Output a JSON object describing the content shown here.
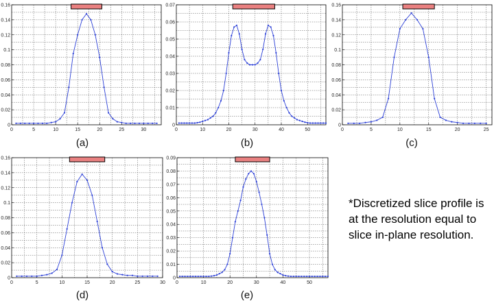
{
  "note": "*Discretized slice profile is at the resolution equal to slice in-plane resolution.",
  "colors": {
    "line": "#2b3fd6",
    "bar_fill": "#e98080",
    "bar_stroke": "#000000",
    "grid": "#555555"
  },
  "chart_data": [
    {
      "id": "a",
      "type": "line",
      "label": "(a)",
      "xlim": [
        0,
        34
      ],
      "ylim": [
        0,
        0.16
      ],
      "xticks": [
        0,
        5,
        10,
        15,
        20,
        25,
        30
      ],
      "yticks": [
        0,
        0.02,
        0.04,
        0.06,
        0.08,
        0.1,
        0.12,
        0.14,
        0.16
      ],
      "ytick_labels": [
        "0",
        "0.02",
        "0.04",
        "0.06",
        "0.08",
        "0.1",
        "0.12",
        "0.14",
        "0.16"
      ],
      "bar": [
        13.5,
        20.5
      ],
      "grid": true,
      "x": [
        1,
        2,
        3,
        4,
        5,
        6,
        7,
        8,
        9,
        10,
        11,
        12,
        13,
        14,
        15,
        16,
        17,
        18,
        19,
        20,
        21,
        22,
        23,
        24,
        25,
        26,
        27,
        28,
        29,
        30,
        31,
        32,
        33
      ],
      "y": [
        0.002,
        0.002,
        0.002,
        0.002,
        0.002,
        0.002,
        0.002,
        0.002,
        0.003,
        0.004,
        0.008,
        0.016,
        0.05,
        0.095,
        0.12,
        0.14,
        0.148,
        0.14,
        0.12,
        0.09,
        0.05,
        0.016,
        0.008,
        0.004,
        0.003,
        0.002,
        0.002,
        0.002,
        0.002,
        0.002,
        0.002,
        0.002,
        0.002
      ]
    },
    {
      "id": "b",
      "type": "line",
      "label": "(b)",
      "xlim": [
        0,
        57
      ],
      "ylim": [
        0,
        0.07
      ],
      "xticks": [
        0,
        10,
        20,
        30,
        40,
        50
      ],
      "yticks": [
        0,
        0.01,
        0.02,
        0.03,
        0.04,
        0.05,
        0.06,
        0.07
      ],
      "ytick_labels": [
        "0",
        "0.01",
        "0.02",
        "0.03",
        "0.04",
        "0.05",
        "0.06",
        "0.07"
      ],
      "bar": [
        21.5,
        37.5
      ],
      "grid": true,
      "x": [
        1,
        2,
        3,
        4,
        5,
        6,
        7,
        8,
        9,
        10,
        11,
        12,
        13,
        14,
        15,
        16,
        17,
        18,
        19,
        20,
        21,
        22,
        23,
        24,
        25,
        26,
        27,
        28,
        29,
        30,
        31,
        32,
        33,
        34,
        35,
        36,
        37,
        38,
        39,
        40,
        41,
        42,
        43,
        44,
        45,
        46,
        47,
        48,
        49,
        50,
        51,
        52,
        53,
        54,
        55,
        56,
        57
      ],
      "y": [
        0.001,
        0.001,
        0.001,
        0.001,
        0.001,
        0.001,
        0.001,
        0.0012,
        0.0015,
        0.002,
        0.0025,
        0.003,
        0.004,
        0.005,
        0.007,
        0.01,
        0.014,
        0.02,
        0.03,
        0.042,
        0.052,
        0.057,
        0.058,
        0.053,
        0.044,
        0.038,
        0.036,
        0.035,
        0.035,
        0.035,
        0.036,
        0.038,
        0.044,
        0.053,
        0.058,
        0.057,
        0.052,
        0.042,
        0.03,
        0.02,
        0.014,
        0.01,
        0.007,
        0.005,
        0.004,
        0.003,
        0.0025,
        0.002,
        0.0015,
        0.0012,
        0.001,
        0.001,
        0.001,
        0.001,
        0.001,
        0.001,
        0.001
      ]
    },
    {
      "id": "c",
      "type": "line",
      "label": "(c)",
      "xlim": [
        0,
        26
      ],
      "ylim": [
        0,
        0.16
      ],
      "xticks": [
        0,
        5,
        10,
        15,
        20,
        25
      ],
      "yticks": [
        0,
        0.02,
        0.04,
        0.06,
        0.08,
        0.1,
        0.12,
        0.14,
        0.16
      ],
      "ytick_labels": [
        "0",
        "0.02",
        "0.04",
        "0.06",
        "0.08",
        "0.1",
        "0.12",
        "0.14",
        "0.16"
      ],
      "bar": [
        10.5,
        16
      ],
      "grid": true,
      "x": [
        1,
        2,
        3,
        4,
        5,
        6,
        7,
        8,
        9,
        10,
        11,
        12,
        13,
        14,
        15,
        16,
        17,
        18,
        19,
        20,
        21,
        22,
        23,
        24,
        25
      ],
      "y": [
        0.002,
        0.002,
        0.002,
        0.003,
        0.004,
        0.006,
        0.01,
        0.035,
        0.09,
        0.128,
        0.14,
        0.149,
        0.14,
        0.128,
        0.09,
        0.035,
        0.01,
        0.006,
        0.004,
        0.003,
        0.002,
        0.002,
        0.002,
        0.002,
        0.002
      ]
    },
    {
      "id": "d",
      "type": "line",
      "label": "(d)",
      "xlim": [
        0,
        30
      ],
      "ylim": [
        0,
        0.16
      ],
      "xticks": [
        0,
        5,
        10,
        15,
        20,
        25,
        30
      ],
      "yticks": [
        0,
        0.02,
        0.04,
        0.06,
        0.08,
        0.1,
        0.12,
        0.14,
        0.16
      ],
      "ytick_labels": [
        "0",
        "0.02",
        "0.04",
        "0.06",
        "0.08",
        "0.1",
        "0.12",
        "0.14",
        "0.16"
      ],
      "bar": [
        11.5,
        18.5
      ],
      "grid": true,
      "x": [
        1,
        2,
        3,
        4,
        5,
        6,
        7,
        8,
        9,
        10,
        11,
        12,
        13,
        14,
        15,
        16,
        17,
        18,
        19,
        20,
        21,
        22,
        23,
        24,
        25,
        26,
        27,
        28,
        29
      ],
      "y": [
        0.002,
        0.002,
        0.002,
        0.002,
        0.002,
        0.003,
        0.004,
        0.006,
        0.011,
        0.03,
        0.065,
        0.1,
        0.128,
        0.138,
        0.13,
        0.11,
        0.075,
        0.04,
        0.018,
        0.008,
        0.005,
        0.004,
        0.003,
        0.003,
        0.002,
        0.002,
        0.002,
        0.002,
        0.002
      ]
    },
    {
      "id": "e",
      "type": "line",
      "label": "(e)",
      "xlim": [
        0,
        57
      ],
      "ylim": [
        0,
        0.09
      ],
      "xticks": [
        0,
        10,
        20,
        30,
        40,
        50
      ],
      "yticks": [
        0,
        0.01,
        0.02,
        0.03,
        0.04,
        0.05,
        0.06,
        0.07,
        0.08,
        0.09
      ],
      "ytick_labels": [
        "0",
        "0.01",
        "0.02",
        "0.03",
        "0.04",
        "0.05",
        "0.06",
        "0.07",
        "0.08",
        "0.09"
      ],
      "bar": [
        22,
        35
      ],
      "grid": true,
      "x": [
        1,
        2,
        3,
        4,
        5,
        6,
        7,
        8,
        9,
        10,
        11,
        12,
        13,
        14,
        15,
        16,
        17,
        18,
        19,
        20,
        21,
        22,
        23,
        24,
        25,
        26,
        27,
        28,
        29,
        30,
        31,
        32,
        33,
        34,
        35,
        36,
        37,
        38,
        39,
        40,
        41,
        42,
        43,
        44,
        45,
        46,
        47,
        48,
        49,
        50,
        51,
        52,
        53,
        54,
        55,
        56,
        57
      ],
      "y": [
        0.001,
        0.001,
        0.001,
        0.001,
        0.001,
        0.001,
        0.001,
        0.001,
        0.001,
        0.001,
        0.001,
        0.001,
        0.0012,
        0.0015,
        0.002,
        0.003,
        0.004,
        0.006,
        0.01,
        0.018,
        0.03,
        0.042,
        0.05,
        0.058,
        0.068,
        0.074,
        0.078,
        0.08,
        0.078,
        0.072,
        0.064,
        0.055,
        0.045,
        0.032,
        0.018,
        0.01,
        0.006,
        0.004,
        0.003,
        0.002,
        0.0015,
        0.0012,
        0.001,
        0.001,
        0.001,
        0.001,
        0.001,
        0.001,
        0.001,
        0.001,
        0.001,
        0.001,
        0.001,
        0.001,
        0.001,
        0.001,
        0.001
      ]
    }
  ]
}
